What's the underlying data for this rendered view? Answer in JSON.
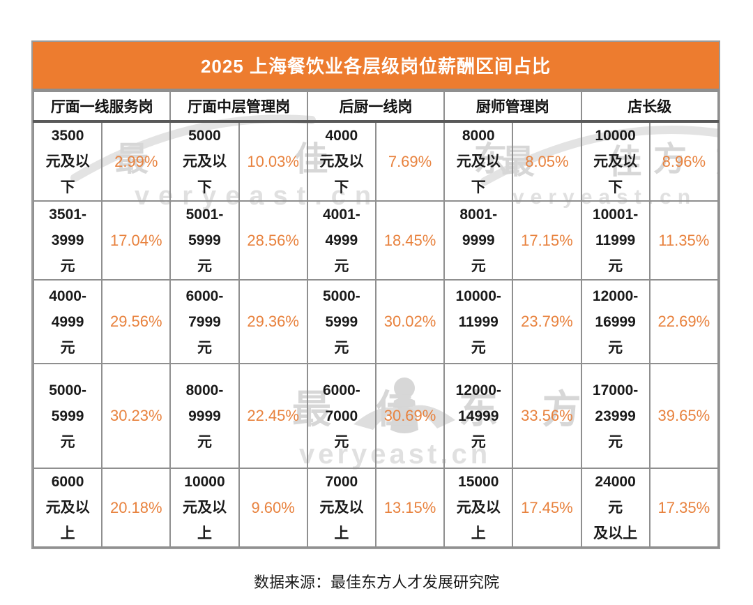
{
  "title": "2025 上海餐饮业各层级岗位薪酬区间占比",
  "column_headers": [
    "厅面一线服务岗",
    "厅面中层管理岗",
    "后厨一线岗",
    "厨师管理岗",
    "店长级"
  ],
  "rows": [
    {
      "cells": [
        {
          "range": "3500\n元及以\n下",
          "pct": "2.99%"
        },
        {
          "range": "5000\n元及以\n下",
          "pct": "10.03%"
        },
        {
          "range": "4000\n元及以\n下",
          "pct": "7.69%"
        },
        {
          "range": "8000\n元及以\n下",
          "pct": "8.05%"
        },
        {
          "range": "10000\n元及以\n下",
          "pct": "8.96%"
        }
      ]
    },
    {
      "cells": [
        {
          "range": "3501-\n3999\n元",
          "pct": "17.04%"
        },
        {
          "range": "5001-\n5999\n元",
          "pct": "28.56%"
        },
        {
          "range": "4001-\n4999\n元",
          "pct": "18.45%"
        },
        {
          "range": "8001-\n9999\n元",
          "pct": "17.15%"
        },
        {
          "range": "10001-\n11999\n元",
          "pct": "11.35%"
        }
      ]
    },
    {
      "cells": [
        {
          "range": "4000-\n4999\n元",
          "pct": "29.56%"
        },
        {
          "range": "6000-\n7999\n元",
          "pct": "29.36%"
        },
        {
          "range": "5000-\n5999\n元",
          "pct": "30.02%"
        },
        {
          "range": "10000-\n11999\n元",
          "pct": "23.79%"
        },
        {
          "range": "12000-\n16999\n元",
          "pct": "22.69%"
        }
      ]
    },
    {
      "cells": [
        {
          "range": "5000-\n5999\n元",
          "pct": "30.23%"
        },
        {
          "range": "8000-\n9999\n元",
          "pct": "22.45%"
        },
        {
          "range": "6000-\n7000\n元",
          "pct": "30.69%"
        },
        {
          "range": "12000-\n14999\n元",
          "pct": "33.56%"
        },
        {
          "range": "17000-\n23999\n元",
          "pct": "39.65%"
        }
      ]
    },
    {
      "cells": [
        {
          "range": "6000\n元及以\n上",
          "pct": "20.18%"
        },
        {
          "range": "10000\n元及以\n上",
          "pct": "9.60%"
        },
        {
          "range": "7000\n元及以\n上",
          "pct": "13.15%"
        },
        {
          "range": "15000\n元及以\n上",
          "pct": "17.45%"
        },
        {
          "range": "24000\n元\n及以上",
          "pct": "17.35%"
        }
      ]
    }
  ],
  "footer": {
    "text": "数据来源：最佳东方人才发展研究院"
  },
  "watermark": {
    "cjk": "最 佳 东 方",
    "latin": "veryeast.cn"
  },
  "colors": {
    "accent_orange": "#ED7C2F",
    "percent_orange": "#E8823E",
    "border_gray": "#8F8F8F",
    "header_divider_gray": "#595959",
    "watermark_gray": "#D9D9D9"
  },
  "chart_data": {
    "type": "table",
    "title": "2025 上海餐饮业各层级岗位薪酬区间占比",
    "unit": "%",
    "source": "数据来源：最佳东方人才发展研究院",
    "groups": [
      {
        "name": "厅面一线服务岗",
        "bands": [
          {
            "range": "3500元及以下",
            "pct": 2.99
          },
          {
            "range": "3501-3999元",
            "pct": 17.04
          },
          {
            "range": "4000-4999元",
            "pct": 29.56
          },
          {
            "range": "5000-5999元",
            "pct": 30.23
          },
          {
            "range": "6000元及以上",
            "pct": 20.18
          }
        ]
      },
      {
        "name": "厅面中层管理岗",
        "bands": [
          {
            "range": "5000元及以下",
            "pct": 10.03
          },
          {
            "range": "5001-5999元",
            "pct": 28.56
          },
          {
            "range": "6000-7999元",
            "pct": 29.36
          },
          {
            "range": "8000-9999元",
            "pct": 22.45
          },
          {
            "range": "10000元及以上",
            "pct": 9.6
          }
        ]
      },
      {
        "name": "后厨一线岗",
        "bands": [
          {
            "range": "4000元及以下",
            "pct": 7.69
          },
          {
            "range": "4001-4999元",
            "pct": 18.45
          },
          {
            "range": "5000-5999元",
            "pct": 30.02
          },
          {
            "range": "6000-7000元",
            "pct": 30.69
          },
          {
            "range": "7000元及以上",
            "pct": 13.15
          }
        ]
      },
      {
        "name": "厨师管理岗",
        "bands": [
          {
            "range": "8000元及以下",
            "pct": 8.05
          },
          {
            "range": "8001-9999元",
            "pct": 17.15
          },
          {
            "range": "10000-11999元",
            "pct": 23.79
          },
          {
            "range": "12000-14999元",
            "pct": 33.56
          },
          {
            "range": "15000元及以上",
            "pct": 17.45
          }
        ]
      },
      {
        "name": "店长级",
        "bands": [
          {
            "range": "10000元及以下",
            "pct": 8.96
          },
          {
            "range": "10001-11999元",
            "pct": 11.35
          },
          {
            "range": "12000-16999元",
            "pct": 22.69
          },
          {
            "range": "17000-23999元",
            "pct": 39.65
          },
          {
            "range": "24000元及以上",
            "pct": 17.35
          }
        ]
      }
    ]
  }
}
